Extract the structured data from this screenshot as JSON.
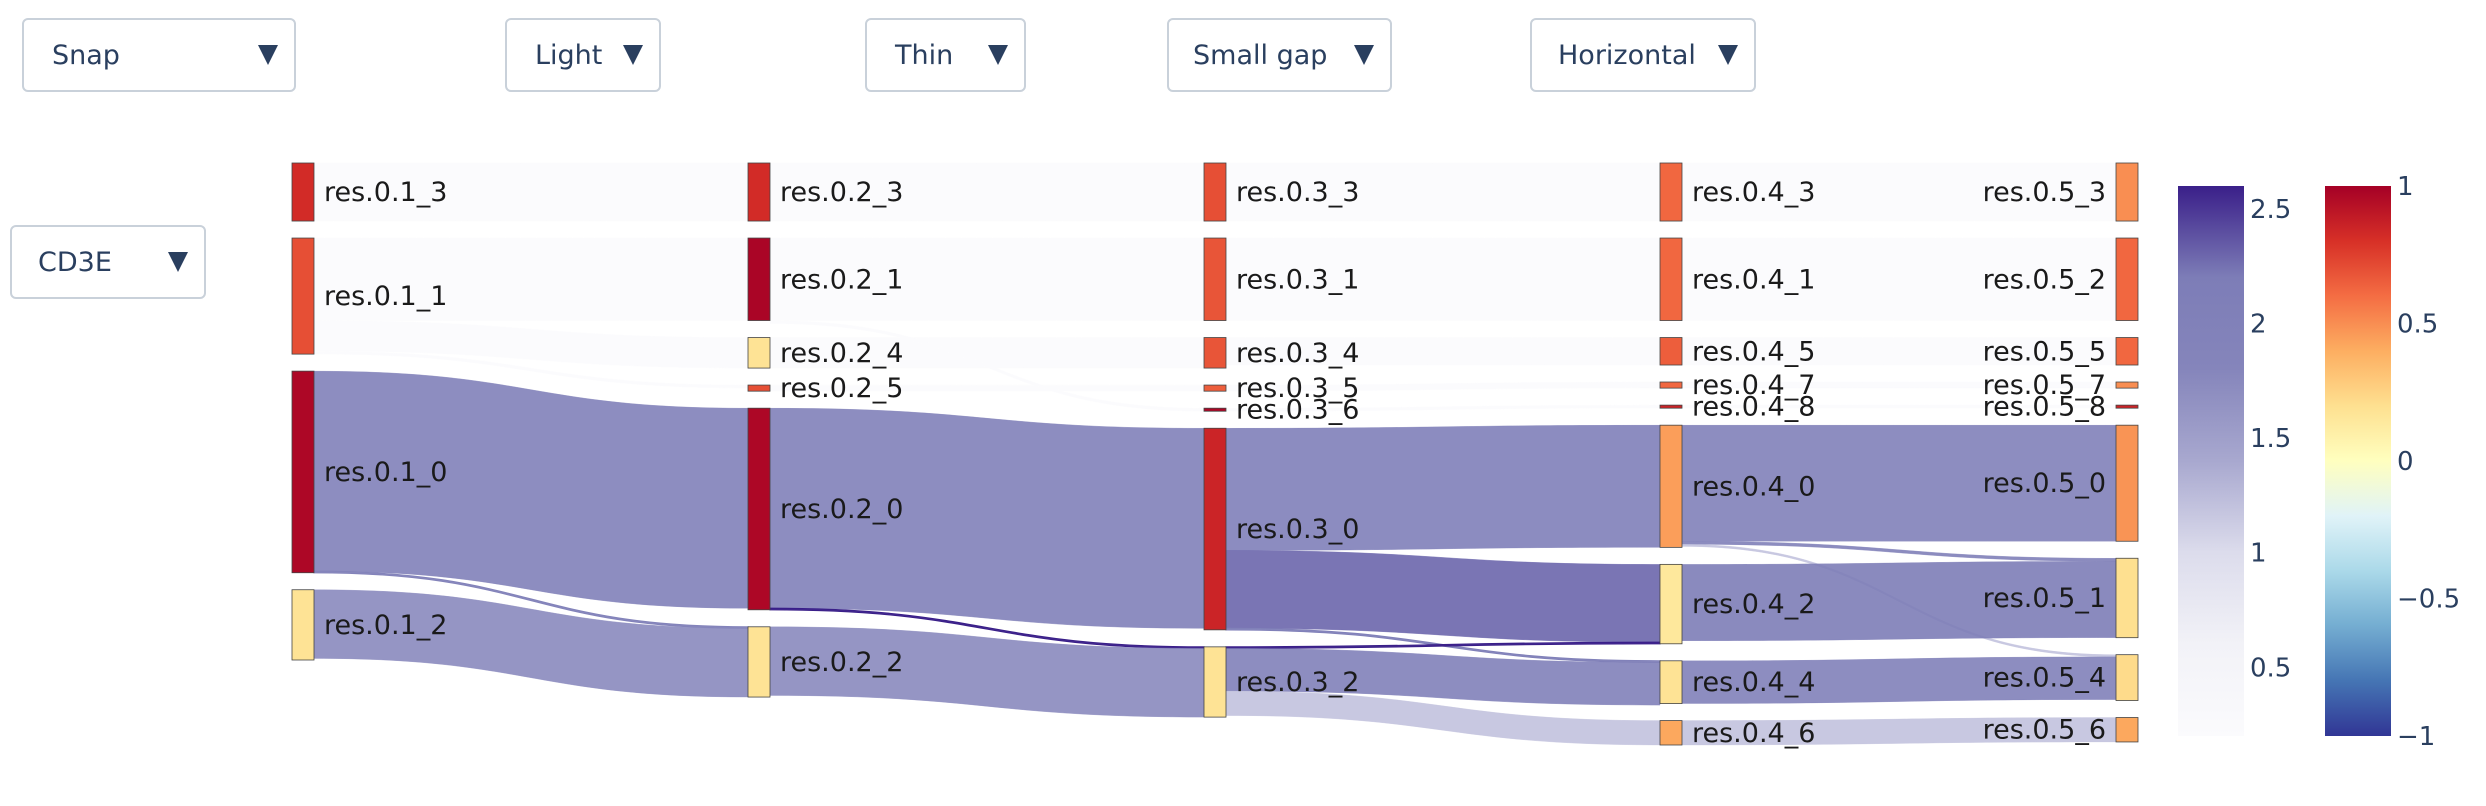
{
  "controls": {
    "arrangement": "Snap",
    "link_opacity": "Light",
    "node_thickness": "Thin",
    "node_gap": "Small gap",
    "orientation": "Horizontal",
    "gene": "CD3E"
  },
  "chart_data": {
    "type": "sankey",
    "title": "",
    "orientation": "horizontal",
    "levels": [
      "res.0.1",
      "res.0.2",
      "res.0.3",
      "res.0.4",
      "res.0.5"
    ],
    "nodes": [
      {
        "name": "res.0.1_3",
        "level": 0,
        "order": 0,
        "size": 19,
        "color_value": 0.82
      },
      {
        "name": "res.0.1_1",
        "level": 0,
        "order": 1,
        "size": 38,
        "color_value": 0.7
      },
      {
        "name": "res.0.1_0",
        "level": 0,
        "order": 2,
        "size": 66,
        "color_value": 0.97
      },
      {
        "name": "res.0.1_2",
        "level": 0,
        "order": 3,
        "size": 23,
        "color_value": 0.18
      },
      {
        "name": "res.0.2_3",
        "level": 1,
        "order": 0,
        "size": 19,
        "color_value": 0.82
      },
      {
        "name": "res.0.2_1",
        "level": 1,
        "order": 1,
        "size": 27,
        "color_value": 0.98
      },
      {
        "name": "res.0.2_4",
        "level": 1,
        "order": 2,
        "size": 10,
        "color_value": 0.18
      },
      {
        "name": "res.0.2_5",
        "level": 1,
        "order": 3,
        "size": 2,
        "color_value": 0.7
      },
      {
        "name": "res.0.2_0",
        "level": 1,
        "order": 4,
        "size": 66,
        "color_value": 0.97
      },
      {
        "name": "res.0.2_2",
        "level": 1,
        "order": 5,
        "size": 23,
        "color_value": 0.18
      },
      {
        "name": "res.0.3_3",
        "level": 2,
        "order": 0,
        "size": 19,
        "color_value": 0.7
      },
      {
        "name": "res.0.3_1",
        "level": 2,
        "order": 1,
        "size": 27,
        "color_value": 0.68
      },
      {
        "name": "res.0.3_4",
        "level": 2,
        "order": 2,
        "size": 10,
        "color_value": 0.68
      },
      {
        "name": "res.0.3_5",
        "level": 2,
        "order": 3,
        "size": 2,
        "color_value": 0.65
      },
      {
        "name": "res.0.3_6",
        "level": 2,
        "order": 4,
        "size": 1,
        "color_value": 0.97
      },
      {
        "name": "res.0.3_0",
        "level": 2,
        "order": 5,
        "size": 66,
        "color_value": 0.85
      },
      {
        "name": "res.0.3_2",
        "level": 2,
        "order": 6,
        "size": 23,
        "color_value": 0.18
      },
      {
        "name": "res.0.4_3",
        "level": 3,
        "order": 0,
        "size": 19,
        "color_value": 0.62
      },
      {
        "name": "res.0.4_1",
        "level": 3,
        "order": 1,
        "size": 27,
        "color_value": 0.62
      },
      {
        "name": "res.0.4_5",
        "level": 3,
        "order": 2,
        "size": 9,
        "color_value": 0.65
      },
      {
        "name": "res.0.4_7",
        "level": 3,
        "order": 3,
        "size": 2,
        "color_value": 0.62
      },
      {
        "name": "res.0.4_8",
        "level": 3,
        "order": 4,
        "size": 1,
        "color_value": 0.85
      },
      {
        "name": "res.0.4_0",
        "level": 3,
        "order": 5,
        "size": 40,
        "color_value": 0.45
      },
      {
        "name": "res.0.4_2",
        "level": 3,
        "order": 6,
        "size": 26,
        "color_value": 0.15
      },
      {
        "name": "res.0.4_4",
        "level": 3,
        "order": 7,
        "size": 14,
        "color_value": 0.18
      },
      {
        "name": "res.0.4_6",
        "level": 3,
        "order": 8,
        "size": 8,
        "color_value": 0.42
      },
      {
        "name": "res.0.5_3",
        "level": 4,
        "order": 0,
        "size": 19,
        "color_value": 0.5
      },
      {
        "name": "res.0.5_2",
        "level": 4,
        "order": 1,
        "size": 27,
        "color_value": 0.62
      },
      {
        "name": "res.0.5_5",
        "level": 4,
        "order": 2,
        "size": 9,
        "color_value": 0.62
      },
      {
        "name": "res.0.5_7",
        "level": 4,
        "order": 3,
        "size": 2,
        "color_value": 0.5
      },
      {
        "name": "res.0.5_8",
        "level": 4,
        "order": 4,
        "size": 1,
        "color_value": 0.85
      },
      {
        "name": "res.0.5_0",
        "level": 4,
        "order": 5,
        "size": 38,
        "color_value": 0.48
      },
      {
        "name": "res.0.5_1",
        "level": 4,
        "order": 6,
        "size": 26,
        "color_value": 0.2
      },
      {
        "name": "res.0.5_4",
        "level": 4,
        "order": 7,
        "size": 15,
        "color_value": 0.22
      },
      {
        "name": "res.0.5_6",
        "level": 4,
        "order": 8,
        "size": 8,
        "color_value": 0.42
      }
    ],
    "links": [
      {
        "source": "res.0.1_3",
        "target": "res.0.2_3",
        "value": 19,
        "color_value": 0.05
      },
      {
        "source": "res.0.1_1",
        "target": "res.0.2_1",
        "value": 27,
        "color_value": 0.05
      },
      {
        "source": "res.0.1_1",
        "target": "res.0.2_4",
        "value": 10,
        "color_value": 0.05
      },
      {
        "source": "res.0.1_1",
        "target": "res.0.2_5",
        "value": 1,
        "color_value": 0.1
      },
      {
        "source": "res.0.1_0",
        "target": "res.0.2_0",
        "value": 65.5,
        "color_value": 2.0
      },
      {
        "source": "res.0.1_0",
        "target": "res.0.2_2",
        "value": 0.5,
        "color_value": 1.9
      },
      {
        "source": "res.0.1_2",
        "target": "res.0.2_2",
        "value": 22.5,
        "color_value": 1.75
      },
      {
        "source": "res.0.2_3",
        "target": "res.0.3_3",
        "value": 19,
        "color_value": 0.05
      },
      {
        "source": "res.0.2_1",
        "target": "res.0.3_1",
        "value": 27,
        "color_value": 0.05
      },
      {
        "source": "res.0.2_4",
        "target": "res.0.3_4",
        "value": 10,
        "color_value": 0.05
      },
      {
        "source": "res.0.2_5",
        "target": "res.0.3_5",
        "value": 2,
        "color_value": 0.1
      },
      {
        "source": "res.0.2_1",
        "target": "res.0.3_6",
        "value": 1,
        "color_value": 0.1
      },
      {
        "source": "res.0.2_0",
        "target": "res.0.3_0",
        "value": 65.5,
        "color_value": 2.0
      },
      {
        "source": "res.0.2_0",
        "target": "res.0.3_2",
        "value": 0.5,
        "color_value": 2.6
      },
      {
        "source": "res.0.2_2",
        "target": "res.0.3_2",
        "value": 22.5,
        "color_value": 1.75
      },
      {
        "source": "res.0.3_3",
        "target": "res.0.4_3",
        "value": 19,
        "color_value": 0.05
      },
      {
        "source": "res.0.3_1",
        "target": "res.0.4_1",
        "value": 27,
        "color_value": 0.05
      },
      {
        "source": "res.0.3_4",
        "target": "res.0.4_5",
        "value": 9,
        "color_value": 0.05
      },
      {
        "source": "res.0.3_5",
        "target": "res.0.4_7",
        "value": 2,
        "color_value": 0.05
      },
      {
        "source": "res.0.3_6",
        "target": "res.0.4_8",
        "value": 1,
        "color_value": 0.1
      },
      {
        "source": "res.0.3_0",
        "target": "res.0.4_0",
        "value": 40,
        "color_value": 2.05
      },
      {
        "source": "res.0.3_0",
        "target": "res.0.4_2",
        "value": 25.5,
        "color_value": 2.3
      },
      {
        "source": "res.0.3_0",
        "target": "res.0.4_4",
        "value": 0.5,
        "color_value": 2.0
      },
      {
        "source": "res.0.3_2",
        "target": "res.0.4_2",
        "value": 0.5,
        "color_value": 2.6
      },
      {
        "source": "res.0.3_2",
        "target": "res.0.4_4",
        "value": 14,
        "color_value": 2.0
      },
      {
        "source": "res.0.3_2",
        "target": "res.0.4_6",
        "value": 8,
        "color_value": 1.2
      },
      {
        "source": "res.0.4_3",
        "target": "res.0.5_3",
        "value": 19,
        "color_value": 0.05
      },
      {
        "source": "res.0.4_1",
        "target": "res.0.5_2",
        "value": 27,
        "color_value": 0.05
      },
      {
        "source": "res.0.4_5",
        "target": "res.0.5_5",
        "value": 9,
        "color_value": 0.05
      },
      {
        "source": "res.0.4_7",
        "target": "res.0.5_7",
        "value": 2,
        "color_value": 0.05
      },
      {
        "source": "res.0.4_8",
        "target": "res.0.5_8",
        "value": 1,
        "color_value": 0.1
      },
      {
        "source": "res.0.4_0",
        "target": "res.0.5_0",
        "value": 38,
        "color_value": 2.0
      },
      {
        "source": "res.0.4_0",
        "target": "res.0.5_1",
        "value": 1,
        "color_value": 2.1
      },
      {
        "source": "res.0.4_0",
        "target": "res.0.5_4",
        "value": 0.7,
        "color_value": 1.2
      },
      {
        "source": "res.0.4_2",
        "target": "res.0.5_1",
        "value": 25,
        "color_value": 2.2
      },
      {
        "source": "res.0.4_4",
        "target": "res.0.5_4",
        "value": 14,
        "color_value": 2.0
      },
      {
        "source": "res.0.4_6",
        "target": "res.0.5_6",
        "value": 8,
        "color_value": 1.2
      }
    ],
    "link_colorbar": {
      "range": [
        0.2,
        2.6
      ],
      "ticks": [
        0.5,
        1,
        1.5,
        2,
        2.5
      ],
      "tick_labels": [
        "0.5",
        "1",
        "1.5",
        "2",
        "2.5"
      ],
      "colors": [
        "#fbfbfd",
        "#f2f2f7",
        "#dcdcec",
        "#a8a8cf",
        "#8585bb",
        "#7d7db7",
        "#3a1f89"
      ]
    },
    "node_colorbar": {
      "range": [
        -1,
        1
      ],
      "ticks": [
        -1,
        -0.5,
        0,
        0.5,
        1
      ],
      "tick_labels": [
        "−1",
        "−0.5",
        "0",
        "0.5",
        "1"
      ],
      "colors": [
        "#313695",
        "#4575b4",
        "#74add1",
        "#abd9e9",
        "#e0f3f8",
        "#ffffbf",
        "#fee090",
        "#fdae61",
        "#f46d43",
        "#d73027",
        "#a50026"
      ]
    }
  }
}
